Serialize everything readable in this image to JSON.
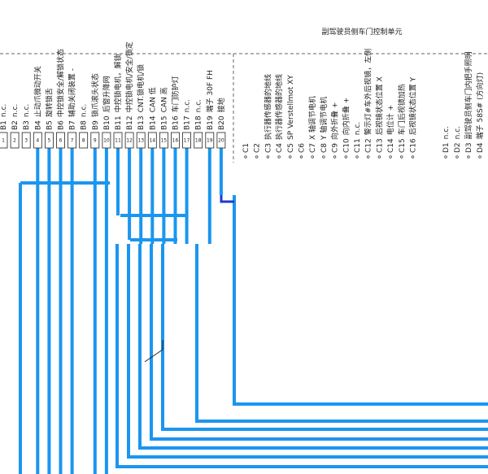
{
  "header": {
    "title": "副驾驶员侧车门控制单元"
  },
  "b_pins": [
    {
      "id": "B1",
      "label": "n.c.",
      "pin": 1
    },
    {
      "id": "B2",
      "label": "n.c.",
      "pin": 2
    },
    {
      "id": "B3",
      "label": "n.c.",
      "pin": 3
    },
    {
      "id": "B4",
      "label": "止动爪微动开关",
      "pin": 4
    },
    {
      "id": "B5",
      "label": "旋转锁舌",
      "pin": 5
    },
    {
      "id": "B6",
      "label": "中控锁安全/解锁状态",
      "pin": 6
    },
    {
      "id": "B7",
      "label": "辅助关闭装置 -",
      "pin": 7
    },
    {
      "id": "B8",
      "label": "n.c.",
      "pin": 8
    },
    {
      "id": "B9",
      "label": "锁爪滚头状态",
      "pin": 9
    },
    {
      "id": "B10",
      "label": "后窗升降网",
      "pin": 10
    },
    {
      "id": "B11",
      "label": "中控锁电机，解锁",
      "pin": 11
    },
    {
      "id": "B12",
      "label": "中控锁电机/安全/锁定",
      "pin": 12
    },
    {
      "id": "B13",
      "label": "CNT.锁电机/锁",
      "pin": 13
    },
    {
      "id": "B14",
      "label": "CAN 低",
      "pin": 14
    },
    {
      "id": "B15",
      "label": "CAN 高",
      "pin": 15
    },
    {
      "id": "B16",
      "label": "车门防护灯",
      "pin": 16
    },
    {
      "id": "B17",
      "label": "n.c.",
      "pin": 17
    },
    {
      "id": "B18",
      "label": "n.c.",
      "pin": 18
    },
    {
      "id": "B19",
      "label": "端子 30F FH",
      "pin": 19
    },
    {
      "id": "B20",
      "label": "接地",
      "pin": 20
    }
  ],
  "c_pins": [
    {
      "id": "C1"
    },
    {
      "id": "C2"
    },
    {
      "id": "C3",
      "label": "执行器传感器的地线"
    },
    {
      "id": "C4",
      "label": "执行器传感器的地线"
    },
    {
      "id": "C5",
      "label": "SP Verstellmot XY"
    },
    {
      "id": "C6"
    },
    {
      "id": "C7",
      "label": "X 轴调节电机"
    },
    {
      "id": "C8",
      "label": "Y 轴调节电机"
    },
    {
      "id": "C9",
      "label": "向外折叠 +"
    },
    {
      "id": "C10",
      "label": "向内折叠 +"
    },
    {
      "id": "C11",
      "label": "n.c."
    },
    {
      "id": "C12",
      "label": "警示灯#车外后视镜，左侧"
    },
    {
      "id": "C13",
      "label": "后视镜状态位置 X"
    },
    {
      "id": "C14",
      "label": "电位计 +"
    },
    {
      "id": "C15",
      "label": "车门后视镜加热"
    },
    {
      "id": "C16",
      "label": "后视镜状态位置 Y"
    }
  ],
  "d_pins": [
    {
      "id": "D1",
      "label": "n.c."
    },
    {
      "id": "D2",
      "label": "n.c."
    },
    {
      "id": "D3",
      "label": "副驾驶员侧车门内把手照明"
    },
    {
      "id": "D4",
      "label": "端子 58S# (方向灯)"
    }
  ]
}
